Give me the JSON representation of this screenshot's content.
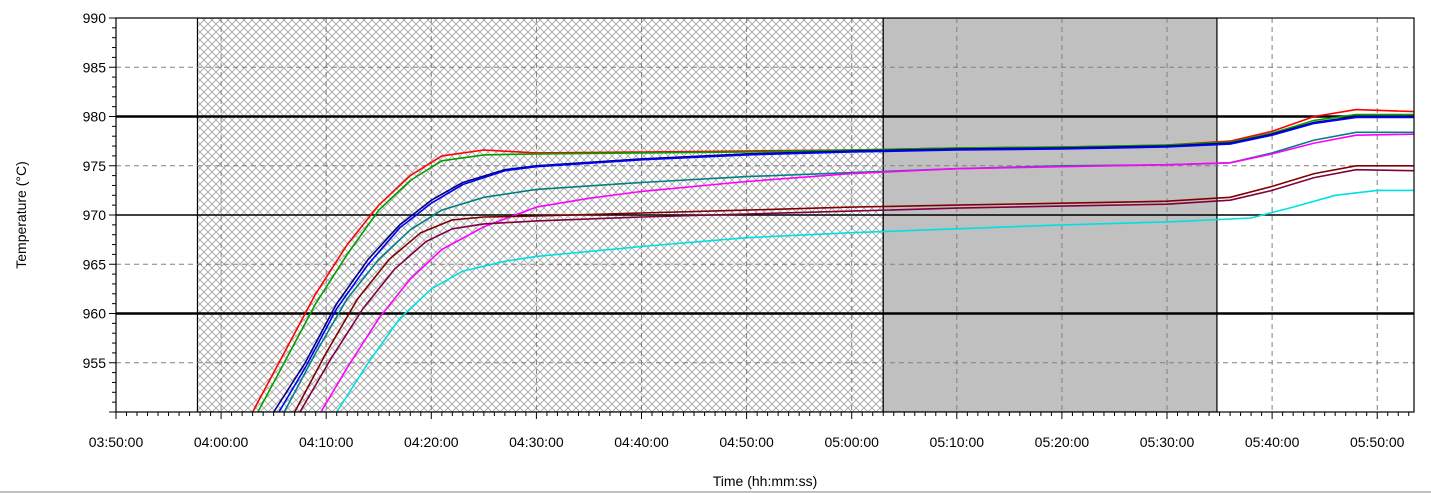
{
  "chart_data": {
    "type": "line",
    "xlabel": "Time (hh:mm:ss)",
    "ylabel": "Temperature (°C)",
    "xlim": [
      "03:50:00",
      "05:53:30"
    ],
    "ylim": [
      950,
      990
    ],
    "grid": "dashed",
    "x_ticks": [
      "03:50:00",
      "04:00:00",
      "04:10:00",
      "04:20:00",
      "04:30:00",
      "04:40:00",
      "04:50:00",
      "05:00:00",
      "05:10:00",
      "05:20:00",
      "05:30:00",
      "05:40:00",
      "05:50:00"
    ],
    "y_ticks": [
      "955",
      "960",
      "965",
      "970",
      "975",
      "980",
      "985",
      "990"
    ],
    "reference_lines": [
      960,
      970,
      980
    ],
    "regions": [
      {
        "start": "03:57:45",
        "end": "05:03:00",
        "style": "crosshatch"
      },
      {
        "start": "05:03:00",
        "end": "05:34:45",
        "style": "gray-fill",
        "color": "#c0c0c0"
      }
    ],
    "series": [
      {
        "color": "#ff0000",
        "points": [
          [
            "04:03:00",
            950
          ],
          [
            "04:06:00",
            956
          ],
          [
            "04:09:00",
            962
          ],
          [
            "04:12:00",
            967
          ],
          [
            "04:15:00",
            971
          ],
          [
            "04:18:00",
            974
          ],
          [
            "04:21:00",
            976
          ],
          [
            "04:25:00",
            976.6
          ],
          [
            "04:30:00",
            976.3
          ],
          [
            "04:40:00",
            976.4
          ],
          [
            "04:50:00",
            976.5
          ],
          [
            "05:00:00",
            976.6
          ],
          [
            "05:10:00",
            976.8
          ],
          [
            "05:20:00",
            976.9
          ],
          [
            "05:30:00",
            977.1
          ],
          [
            "05:36:00",
            977.5
          ],
          [
            "05:40:00",
            978.5
          ],
          [
            "05:44:00",
            980
          ],
          [
            "05:48:00",
            980.7
          ],
          [
            "05:53:30",
            980.5
          ]
        ]
      },
      {
        "color": "#00a000",
        "points": [
          [
            "04:03:30",
            950
          ],
          [
            "04:06:00",
            955
          ],
          [
            "04:09:00",
            961
          ],
          [
            "04:12:00",
            966
          ],
          [
            "04:15:00",
            970.5
          ],
          [
            "04:18:00",
            973.5
          ],
          [
            "04:21:00",
            975.5
          ],
          [
            "04:25:00",
            976.1
          ],
          [
            "04:30:00",
            976.2
          ],
          [
            "04:40:00",
            976.3
          ],
          [
            "04:50:00",
            976.4
          ],
          [
            "05:00:00",
            976.6
          ],
          [
            "05:10:00",
            976.8
          ],
          [
            "05:20:00",
            976.9
          ],
          [
            "05:30:00",
            977.1
          ],
          [
            "05:36:00",
            977.4
          ],
          [
            "05:40:00",
            978.3
          ],
          [
            "05:44:00",
            979.6
          ],
          [
            "05:48:00",
            980.2
          ],
          [
            "05:53:30",
            980.2
          ]
        ]
      },
      {
        "color": "#000080",
        "points": [
          [
            "04:05:00",
            950
          ],
          [
            "04:08:00",
            955
          ],
          [
            "04:11:00",
            961
          ],
          [
            "04:14:00",
            965.5
          ],
          [
            "04:17:00",
            969
          ],
          [
            "04:20:00",
            971.5
          ],
          [
            "04:23:00",
            973.3
          ],
          [
            "04:27:00",
            974.6
          ],
          [
            "04:30:00",
            975
          ],
          [
            "04:40:00",
            975.7
          ],
          [
            "04:50:00",
            976.2
          ],
          [
            "05:00:00",
            976.5
          ],
          [
            "05:10:00",
            976.7
          ],
          [
            "05:20:00",
            976.8
          ],
          [
            "05:30:00",
            977
          ],
          [
            "05:36:00",
            977.3
          ],
          [
            "05:40:00",
            978.2
          ],
          [
            "05:44:00",
            979.4
          ],
          [
            "05:48:00",
            980
          ],
          [
            "05:53:30",
            980
          ]
        ]
      },
      {
        "color": "#0000ff",
        "points": [
          [
            "04:05:30",
            950
          ],
          [
            "04:08:00",
            954.5
          ],
          [
            "04:11:00",
            960.5
          ],
          [
            "04:14:00",
            965
          ],
          [
            "04:17:00",
            968.7
          ],
          [
            "04:20:00",
            971.2
          ],
          [
            "04:23:00",
            973.1
          ],
          [
            "04:27:00",
            974.5
          ],
          [
            "04:30:00",
            974.9
          ],
          [
            "04:40:00",
            975.6
          ],
          [
            "04:50:00",
            976.1
          ],
          [
            "05:00:00",
            976.4
          ],
          [
            "05:10:00",
            976.6
          ],
          [
            "05:20:00",
            976.7
          ],
          [
            "05:30:00",
            976.9
          ],
          [
            "05:36:00",
            977.2
          ],
          [
            "05:40:00",
            978.1
          ],
          [
            "05:44:00",
            979.3
          ],
          [
            "05:48:00",
            979.9
          ],
          [
            "05:53:30",
            979.9
          ]
        ]
      },
      {
        "color": "#008080",
        "points": [
          [
            "04:06:00",
            950
          ],
          [
            "04:09:00",
            956
          ],
          [
            "04:12:00",
            961.5
          ],
          [
            "04:15:00",
            965.5
          ],
          [
            "04:18:00",
            968.5
          ],
          [
            "04:21:00",
            970.5
          ],
          [
            "04:25:00",
            971.8
          ],
          [
            "04:30:00",
            972.6
          ],
          [
            "04:40:00",
            973.3
          ],
          [
            "04:50:00",
            973.9
          ],
          [
            "05:00:00",
            974.3
          ],
          [
            "05:10:00",
            974.7
          ],
          [
            "05:20:00",
            975
          ],
          [
            "05:30:00",
            975.1
          ],
          [
            "05:36:00",
            975.3
          ],
          [
            "05:40:00",
            976.3
          ],
          [
            "05:44:00",
            977.6
          ],
          [
            "05:48:00",
            978.4
          ],
          [
            "05:53:30",
            978.4
          ]
        ]
      },
      {
        "color": "#ff00ff",
        "points": [
          [
            "04:09:30",
            950
          ],
          [
            "04:12:00",
            954.5
          ],
          [
            "04:15:00",
            959.5
          ],
          [
            "04:18:00",
            963.5
          ],
          [
            "04:21:00",
            966.5
          ],
          [
            "04:25:00",
            968.8
          ],
          [
            "04:30:00",
            970.8
          ],
          [
            "04:35:00",
            971.7
          ],
          [
            "04:40:00",
            972.4
          ],
          [
            "04:50:00",
            973.4
          ],
          [
            "05:00:00",
            974.2
          ],
          [
            "05:10:00",
            974.7
          ],
          [
            "05:20:00",
            974.9
          ],
          [
            "05:30:00",
            975.1
          ],
          [
            "05:36:00",
            975.3
          ],
          [
            "05:40:00",
            976.2
          ],
          [
            "05:44:00",
            977.3
          ],
          [
            "05:48:00",
            978.1
          ],
          [
            "05:53:30",
            978.2
          ]
        ]
      },
      {
        "color": "#800000",
        "points": [
          [
            "04:07:00",
            950
          ],
          [
            "04:10:00",
            956
          ],
          [
            "04:13:00",
            961.5
          ],
          [
            "04:16:00",
            965.5
          ],
          [
            "04:19:00",
            968.2
          ],
          [
            "04:22:00",
            969.5
          ],
          [
            "04:25:00",
            969.8
          ],
          [
            "04:30:00",
            969.9
          ],
          [
            "04:40:00",
            970.2
          ],
          [
            "04:50:00",
            970.5
          ],
          [
            "05:00:00",
            970.8
          ],
          [
            "05:10:00",
            971
          ],
          [
            "05:20:00",
            971.2
          ],
          [
            "05:30:00",
            971.4
          ],
          [
            "05:36:00",
            971.8
          ],
          [
            "05:40:00",
            972.9
          ],
          [
            "05:44:00",
            974.2
          ],
          [
            "05:48:00",
            975
          ],
          [
            "05:53:30",
            975
          ]
        ]
      },
      {
        "color": "#800040",
        "points": [
          [
            "04:07:30",
            950
          ],
          [
            "04:10:30",
            955.5
          ],
          [
            "04:13:30",
            960.5
          ],
          [
            "04:16:30",
            964.5
          ],
          [
            "04:19:30",
            967.3
          ],
          [
            "04:22:00",
            968.6
          ],
          [
            "04:25:00",
            969.1
          ],
          [
            "04:30:00",
            969.4
          ],
          [
            "04:40:00",
            969.8
          ],
          [
            "04:50:00",
            970.1
          ],
          [
            "05:00:00",
            970.4
          ],
          [
            "05:10:00",
            970.7
          ],
          [
            "05:20:00",
            970.9
          ],
          [
            "05:30:00",
            971.1
          ],
          [
            "05:36:00",
            971.5
          ],
          [
            "05:40:00",
            972.5
          ],
          [
            "05:44:00",
            973.8
          ],
          [
            "05:48:00",
            974.6
          ],
          [
            "05:53:30",
            974.5
          ]
        ]
      },
      {
        "color": "#00e0e0",
        "points": [
          [
            "04:11:00",
            950
          ],
          [
            "04:14:00",
            955
          ],
          [
            "04:17:00",
            959.5
          ],
          [
            "04:20:00",
            962.5
          ],
          [
            "04:23:00",
            964.3
          ],
          [
            "04:27:00",
            965.3
          ],
          [
            "04:30:00",
            965.8
          ],
          [
            "04:40:00",
            966.8
          ],
          [
            "04:50:00",
            967.7
          ],
          [
            "05:00:00",
            968.2
          ],
          [
            "05:10:00",
            968.6
          ],
          [
            "05:20:00",
            969
          ],
          [
            "05:30:00",
            969.3
          ],
          [
            "05:38:00",
            969.7
          ],
          [
            "05:42:00",
            970.8
          ],
          [
            "05:46:00",
            972
          ],
          [
            "05:50:00",
            972.5
          ],
          [
            "05:53:30",
            972.5
          ]
        ]
      }
    ]
  }
}
